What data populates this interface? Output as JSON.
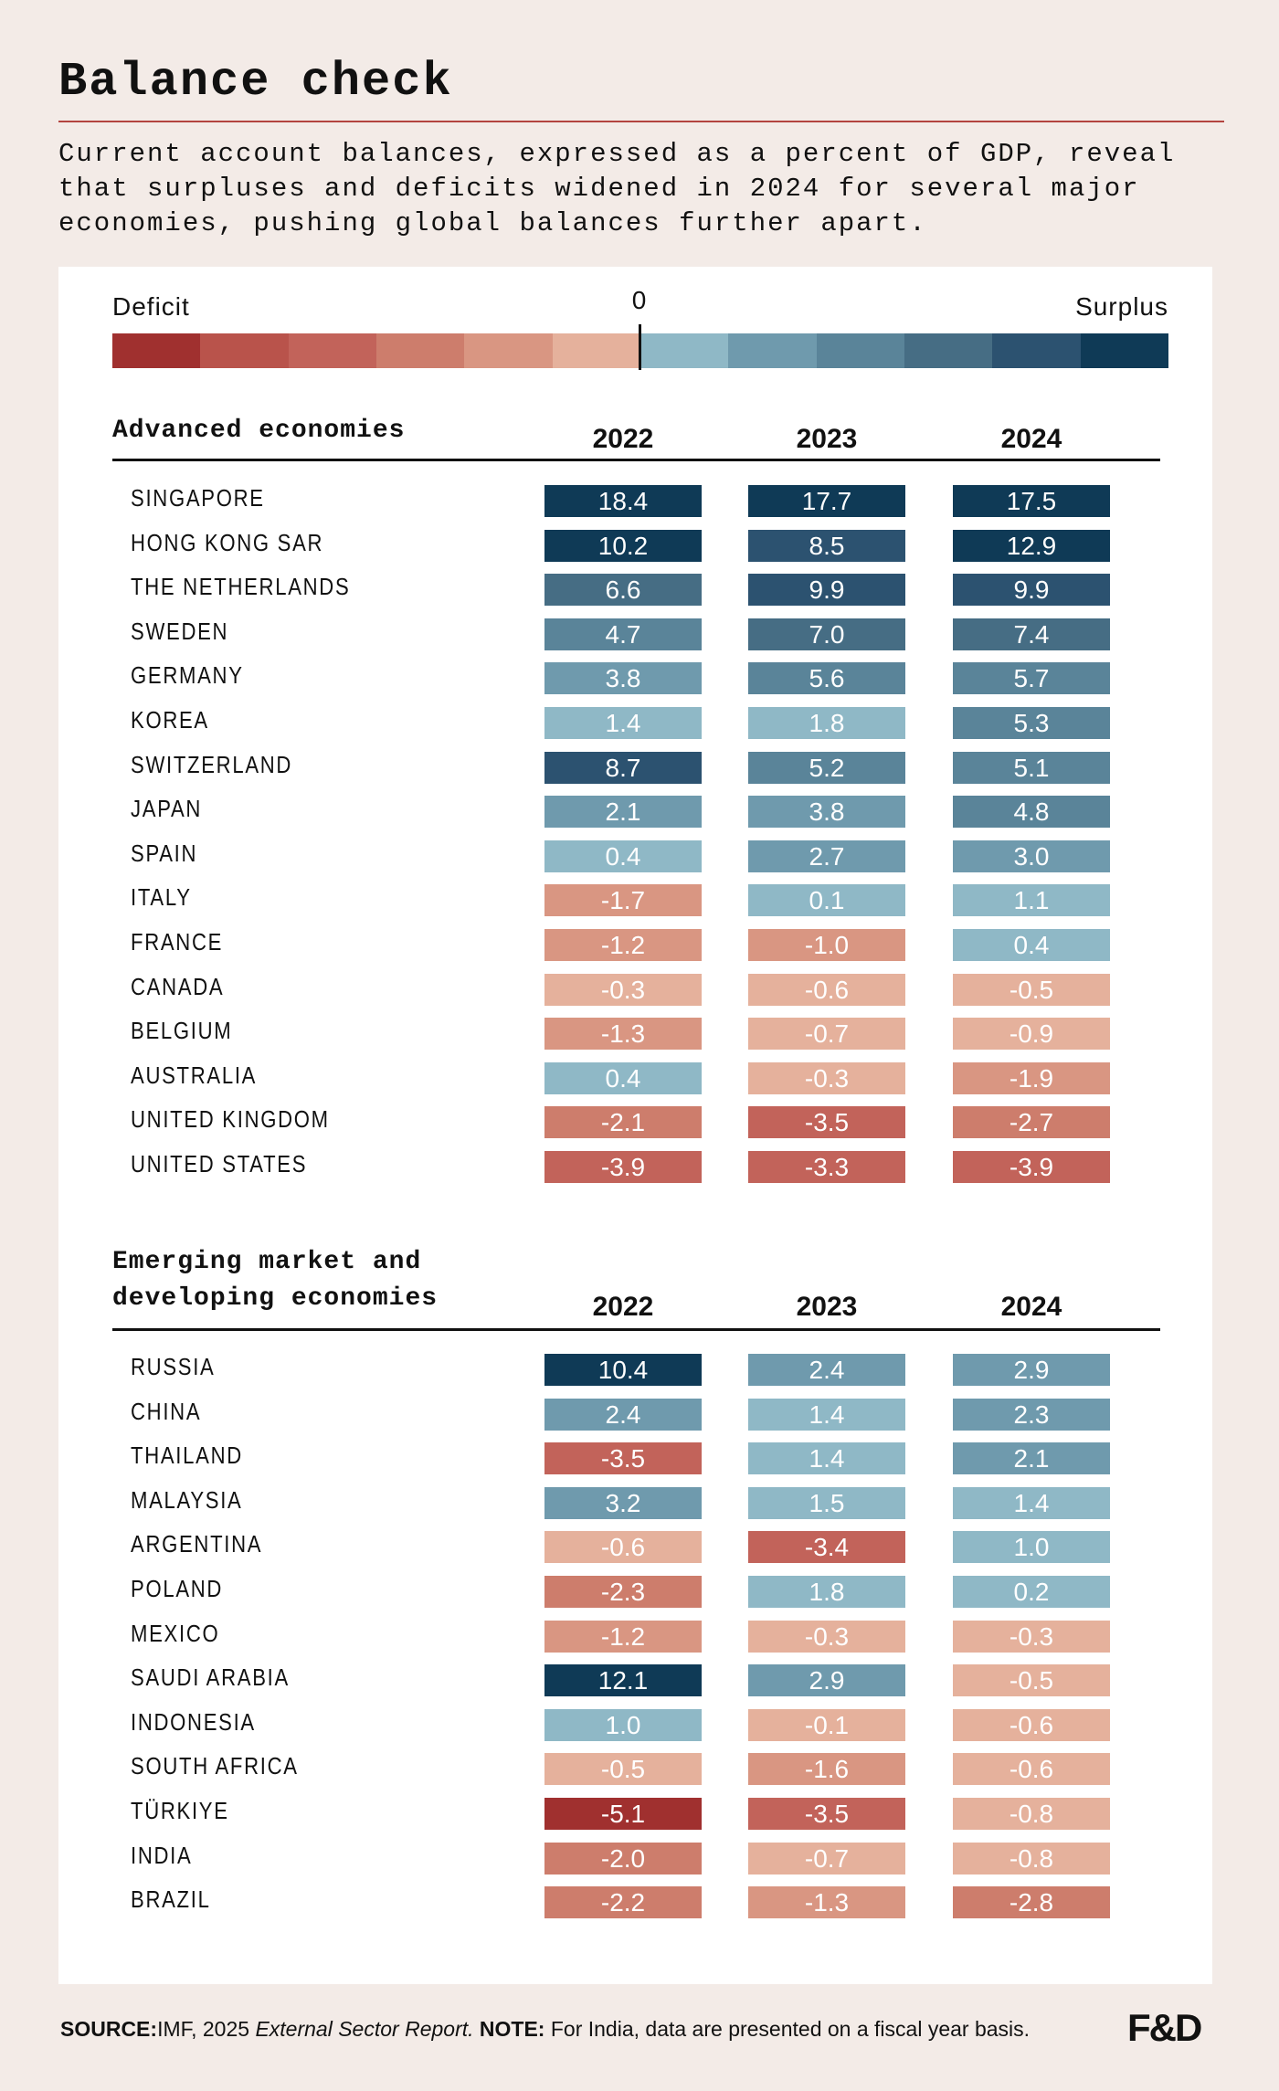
{
  "header": {
    "title": "Balance check",
    "subtitle": "Current account balances, expressed as a percent of GDP, reveal that surpluses and deficits widened in 2024 for several major economies, pushing global balances further apart."
  },
  "legend": {
    "deficit": "Deficit",
    "zero": "0",
    "surplus": "Surplus",
    "colors": [
      "#a0302f",
      "#b9534b",
      "#c2635a",
      "#cd7d6c",
      "#d99682",
      "#e5b19c",
      "#8fb8c6",
      "#6f9aad",
      "#5a8499",
      "#466d84",
      "#2c5270",
      "#0f3a56"
    ]
  },
  "sections": [
    {
      "title": "Advanced economies",
      "years": [
        "2022",
        "2023",
        "2024"
      ],
      "rows": [
        {
          "name": "SINGAPORE",
          "cells": [
            "18.4",
            "17.7",
            "17.5"
          ],
          "colors": [
            "#0f3a56",
            "#0f3a56",
            "#0f3a56"
          ]
        },
        {
          "name": "HONG KONG SAR",
          "cells": [
            "10.2",
            "8.5",
            "12.9"
          ],
          "colors": [
            "#0f3a56",
            "#2c5270",
            "#0f3a56"
          ]
        },
        {
          "name": "THE NETHERLANDS",
          "cells": [
            "6.6",
            "9.9",
            "9.9"
          ],
          "colors": [
            "#466d84",
            "#2c5270",
            "#2c5270"
          ]
        },
        {
          "name": "SWEDEN",
          "cells": [
            "4.7",
            "7.0",
            "7.4"
          ],
          "colors": [
            "#5a8499",
            "#466d84",
            "#466d84"
          ]
        },
        {
          "name": "GERMANY",
          "cells": [
            "3.8",
            "5.6",
            "5.7"
          ],
          "colors": [
            "#6f9aad",
            "#5a8499",
            "#5a8499"
          ]
        },
        {
          "name": "KOREA",
          "cells": [
            "1.4",
            "1.8",
            "5.3"
          ],
          "colors": [
            "#8fb8c6",
            "#8fb8c6",
            "#5a8499"
          ]
        },
        {
          "name": "SWITZERLAND",
          "cells": [
            "8.7",
            "5.2",
            "5.1"
          ],
          "colors": [
            "#2c5270",
            "#5a8499",
            "#5a8499"
          ]
        },
        {
          "name": "JAPAN",
          "cells": [
            "2.1",
            "3.8",
            "4.8"
          ],
          "colors": [
            "#6f9aad",
            "#6f9aad",
            "#5a8499"
          ]
        },
        {
          "name": "SPAIN",
          "cells": [
            "0.4",
            "2.7",
            "3.0"
          ],
          "colors": [
            "#8fb8c6",
            "#6f9aad",
            "#6f9aad"
          ]
        },
        {
          "name": "ITALY",
          "cells": [
            "-1.7",
            "0.1",
            "1.1"
          ],
          "colors": [
            "#d99682",
            "#8fb8c6",
            "#8fb8c6"
          ]
        },
        {
          "name": "FRANCE",
          "cells": [
            "-1.2",
            "-1.0",
            "0.4"
          ],
          "colors": [
            "#d99682",
            "#d99682",
            "#8fb8c6"
          ]
        },
        {
          "name": "CANADA",
          "cells": [
            "-0.3",
            "-0.6",
            "-0.5"
          ],
          "colors": [
            "#e5b19c",
            "#e5b19c",
            "#e5b19c"
          ]
        },
        {
          "name": "BELGIUM",
          "cells": [
            "-1.3",
            "-0.7",
            "-0.9"
          ],
          "colors": [
            "#d99682",
            "#e5b19c",
            "#e5b19c"
          ]
        },
        {
          "name": "AUSTRALIA",
          "cells": [
            "0.4",
            "-0.3",
            "-1.9"
          ],
          "colors": [
            "#8fb8c6",
            "#e5b19c",
            "#d99682"
          ]
        },
        {
          "name": "UNITED KINGDOM",
          "cells": [
            "-2.1",
            "-3.5",
            "-2.7"
          ],
          "colors": [
            "#cd7d6c",
            "#c2635a",
            "#cd7d6c"
          ]
        },
        {
          "name": "UNITED STATES",
          "cells": [
            "-3.9",
            "-3.3",
            "-3.9"
          ],
          "colors": [
            "#c2635a",
            "#c2635a",
            "#c2635a"
          ]
        }
      ]
    },
    {
      "title": "Emerging market and developing economies",
      "years": [
        "2022",
        "2023",
        "2024"
      ],
      "rows": [
        {
          "name": "RUSSIA",
          "cells": [
            "10.4",
            "2.4",
            "2.9"
          ],
          "colors": [
            "#0f3a56",
            "#6f9aad",
            "#6f9aad"
          ]
        },
        {
          "name": "CHINA",
          "cells": [
            "2.4",
            "1.4",
            "2.3"
          ],
          "colors": [
            "#6f9aad",
            "#8fb8c6",
            "#6f9aad"
          ]
        },
        {
          "name": "THAILAND",
          "cells": [
            "-3.5",
            "1.4",
            "2.1"
          ],
          "colors": [
            "#c2635a",
            "#8fb8c6",
            "#6f9aad"
          ]
        },
        {
          "name": "MALAYSIA",
          "cells": [
            "3.2",
            "1.5",
            "1.4"
          ],
          "colors": [
            "#6f9aad",
            "#8fb8c6",
            "#8fb8c6"
          ]
        },
        {
          "name": "ARGENTINA",
          "cells": [
            "-0.6",
            "-3.4",
            "1.0"
          ],
          "colors": [
            "#e5b19c",
            "#c2635a",
            "#8fb8c6"
          ]
        },
        {
          "name": "POLAND",
          "cells": [
            "-2.3",
            "1.8",
            "0.2"
          ],
          "colors": [
            "#cd7d6c",
            "#8fb8c6",
            "#8fb8c6"
          ]
        },
        {
          "name": "MEXICO",
          "cells": [
            "-1.2",
            "-0.3",
            "-0.3"
          ],
          "colors": [
            "#d99682",
            "#e5b19c",
            "#e5b19c"
          ]
        },
        {
          "name": "SAUDI ARABIA",
          "cells": [
            "12.1",
            "2.9",
            "-0.5"
          ],
          "colors": [
            "#0f3a56",
            "#6f9aad",
            "#e5b19c"
          ]
        },
        {
          "name": "INDONESIA",
          "cells": [
            "1.0",
            "-0.1",
            "-0.6"
          ],
          "colors": [
            "#8fb8c6",
            "#e5b19c",
            "#e5b19c"
          ]
        },
        {
          "name": "SOUTH AFRICA",
          "cells": [
            "-0.5",
            "-1.6",
            "-0.6"
          ],
          "colors": [
            "#e5b19c",
            "#d99682",
            "#e5b19c"
          ]
        },
        {
          "name": "TÜRKIYE",
          "cells": [
            "-5.1",
            "-3.5",
            "-0.8"
          ],
          "colors": [
            "#a0302f",
            "#c2635a",
            "#e5b19c"
          ]
        },
        {
          "name": "INDIA",
          "cells": [
            "-2.0",
            "-0.7",
            "-0.8"
          ],
          "colors": [
            "#cd7d6c",
            "#e5b19c",
            "#e5b19c"
          ]
        },
        {
          "name": "BRAZIL",
          "cells": [
            "-2.2",
            "-1.3",
            "-2.8"
          ],
          "colors": [
            "#cd7d6c",
            "#d99682",
            "#cd7d6c"
          ]
        }
      ]
    }
  ],
  "footer": {
    "source_label": "SOURCE:",
    "source": "IMF, 2025 ",
    "report": "External Sector Report.",
    "note_label": " NOTE:",
    "note": " For India, data are presented on a fiscal year basis.",
    "logo": "F&D"
  }
}
